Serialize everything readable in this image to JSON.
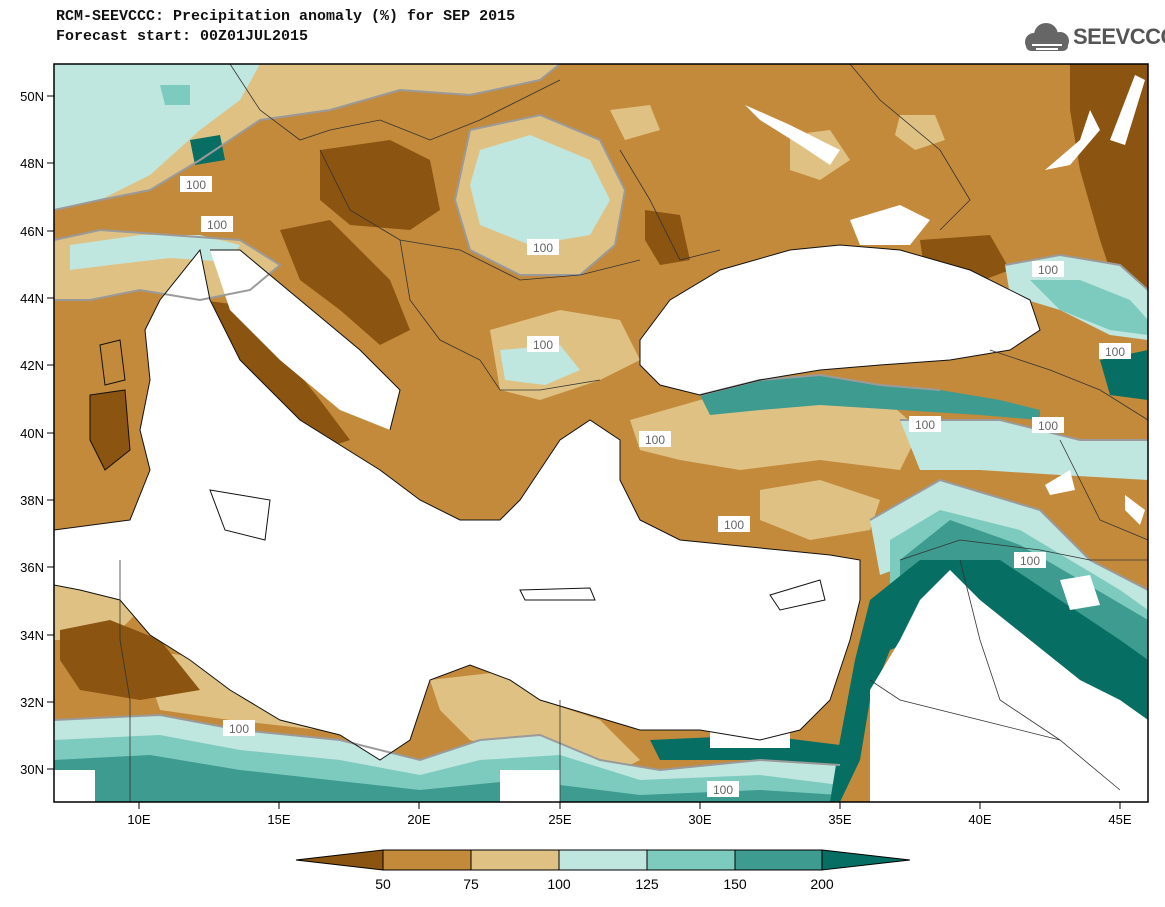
{
  "header": {
    "title_line1": "RCM-SEEVCCC: Precipitation anomaly (%) for SEP 2015",
    "title_line2": "Forecast start: 00Z01JUL2015",
    "logo_text": "SEEVCCC",
    "logo_icon": "cloud-icon"
  },
  "map": {
    "lon_range": [
      7,
      46
    ],
    "lat_range": [
      29,
      51
    ],
    "lon_ticks": [
      "10E",
      "15E",
      "20E",
      "25E",
      "30E",
      "35E",
      "40E",
      "45E"
    ],
    "lat_ticks": [
      "30N",
      "32N",
      "34N",
      "36N",
      "38N",
      "40N",
      "42N",
      "44N",
      "46N",
      "48N",
      "50N"
    ],
    "contour_labels": [
      "100",
      "100",
      "100",
      "100",
      "100",
      "100",
      "100",
      "100",
      "100",
      "100",
      "100",
      "100",
      "100"
    ]
  },
  "colorbar": {
    "labels": [
      "50",
      "75",
      "100",
      "125",
      "150",
      "200"
    ],
    "colors": [
      "#8b5410",
      "#c48a3c",
      "#dfc283",
      "#bfe6df",
      "#7ccbbe",
      "#3d9b90",
      "#066e62"
    ]
  }
}
